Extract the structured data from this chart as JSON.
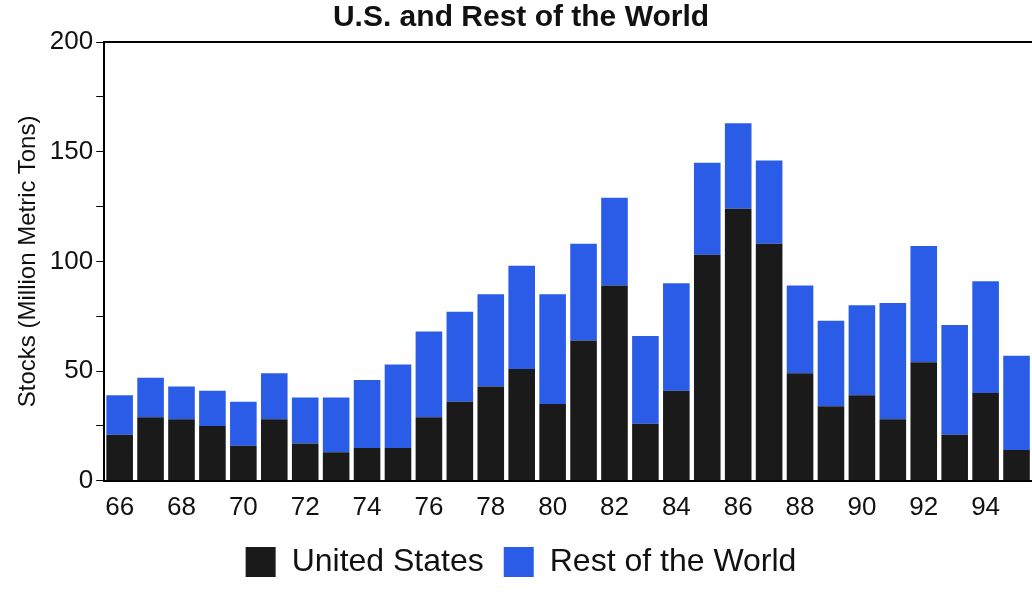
{
  "chart_data": {
    "type": "bar",
    "title": "U.S. and Rest of the World",
    "ylabel": "Stocks (Million Metric Tons)",
    "categories": [
      "66",
      null,
      "68",
      null,
      "70",
      null,
      "72",
      null,
      "74",
      null,
      "76",
      null,
      "78",
      null,
      "80",
      null,
      "82",
      null,
      "84",
      null,
      "86",
      null,
      "88",
      null,
      "90",
      null,
      "92",
      null,
      "94",
      null
    ],
    "stacked": true,
    "series": [
      {
        "name": "United States",
        "color": "#1a1a1a",
        "values": [
          21,
          29,
          28,
          25,
          16,
          28,
          17,
          13,
          15,
          15,
          29,
          36,
          43,
          51,
          35,
          64,
          89,
          26,
          41,
          103,
          124,
          108,
          49,
          34,
          39,
          28,
          54,
          21,
          40,
          14
        ]
      },
      {
        "name": "Rest of the World",
        "color": "#2a5ce8",
        "values": [
          18,
          18,
          15,
          16,
          20,
          21,
          21,
          25,
          31,
          38,
          39,
          41,
          42,
          47,
          50,
          44,
          40,
          40,
          49,
          42,
          39,
          38,
          40,
          39,
          41,
          53,
          53,
          50,
          51,
          43
        ]
      }
    ],
    "ylim": [
      0,
      200
    ],
    "yticks": [
      0,
      {
        "value": 25,
        "label": null
      },
      50,
      {
        "value": 75,
        "label": null
      },
      100,
      {
        "value": 125,
        "label": null
      },
      150,
      {
        "value": 175,
        "label": null
      },
      200
    ],
    "grid": false,
    "legend": "bottom"
  }
}
